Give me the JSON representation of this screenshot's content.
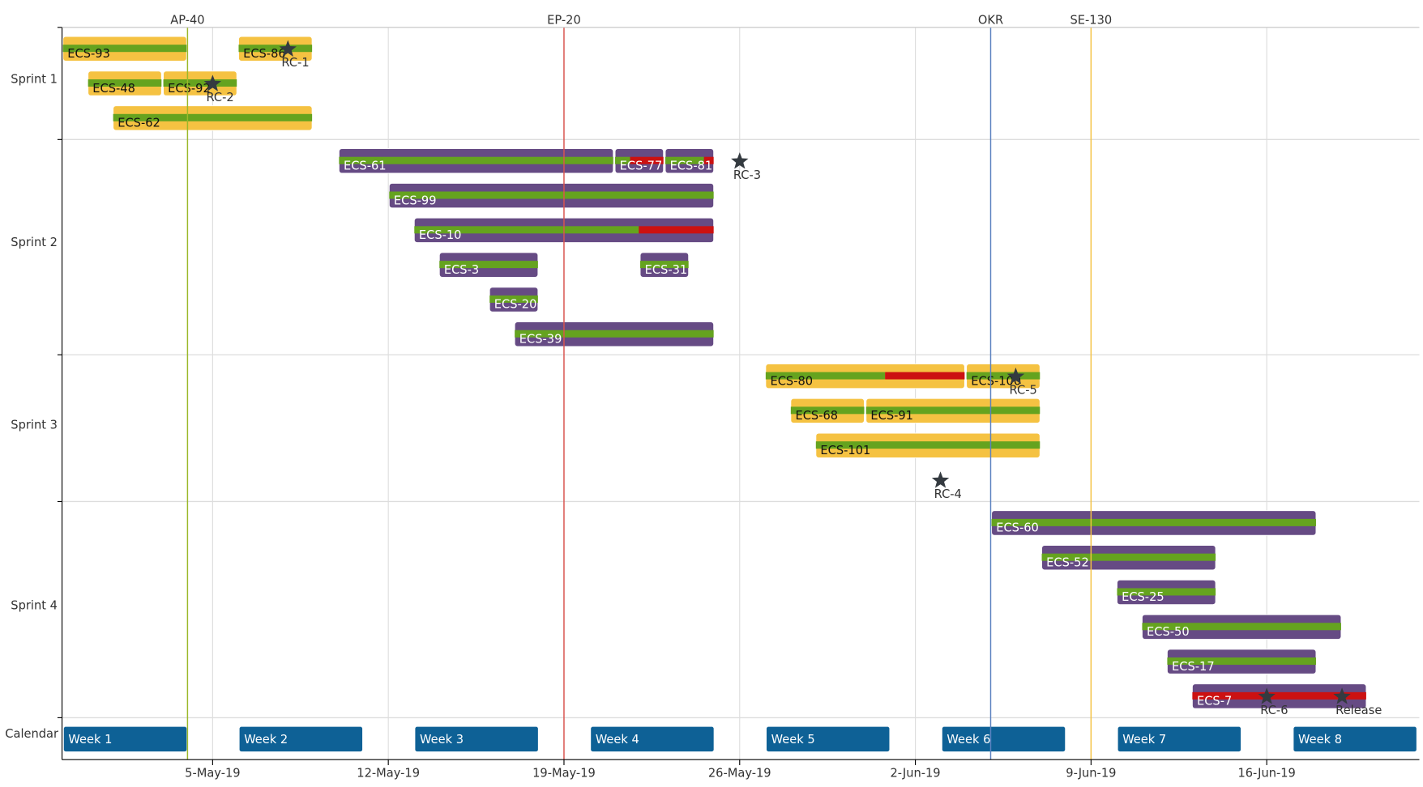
{
  "chart_data": {
    "type": "gantt",
    "x_domain": [
      "2019-04-29",
      "2019-06-22"
    ],
    "x_ticks": [
      {
        "date": "2019-05-05",
        "label": "5-May-19"
      },
      {
        "date": "2019-05-12",
        "label": "12-May-19"
      },
      {
        "date": "2019-05-19",
        "label": "19-May-19"
      },
      {
        "date": "2019-05-26",
        "label": "26-May-19"
      },
      {
        "date": "2019-06-02",
        "label": "2-Jun-19"
      },
      {
        "date": "2019-06-09",
        "label": "9-Jun-19"
      },
      {
        "date": "2019-06-16",
        "label": "16-Jun-19"
      }
    ],
    "colors": {
      "sprint_odd": "#f5c242",
      "sprint_even": "#664b84",
      "progress": "#65a31f",
      "overdue": "#cc1111",
      "calendar": "#0e6196",
      "star": "#343a40"
    },
    "lanes": [
      {
        "label": "Sprint 1",
        "rows": 3,
        "style": "yellow"
      },
      {
        "label": "Sprint 2",
        "rows": 6,
        "style": "purple"
      },
      {
        "label": "Sprint 3",
        "rows": 4,
        "style": "yellow"
      },
      {
        "label": "Sprint 4",
        "rows": 6,
        "style": "purple"
      },
      {
        "label": "Calendar",
        "rows": 1,
        "style": "calendar"
      }
    ],
    "tasks": [
      {
        "name": "ECS-93",
        "lane": 0,
        "row": 0,
        "start": "2019-04-29",
        "end": "2019-05-04",
        "progress": 1,
        "overdue": false
      },
      {
        "name": "ECS-86",
        "lane": 0,
        "row": 0,
        "start": "2019-05-06",
        "end": "2019-05-09",
        "progress": 1,
        "overdue": false
      },
      {
        "name": "ECS-48",
        "lane": 0,
        "row": 1,
        "start": "2019-04-30",
        "end": "2019-05-03",
        "progress": 1,
        "overdue": false
      },
      {
        "name": "ECS-92",
        "lane": 0,
        "row": 1,
        "start": "2019-05-03",
        "end": "2019-05-06",
        "progress": 1,
        "overdue": false
      },
      {
        "name": "ECS-62",
        "lane": 0,
        "row": 2,
        "start": "2019-05-01",
        "end": "2019-05-09",
        "progress": 1,
        "overdue": false
      },
      {
        "name": "ECS-61",
        "lane": 1,
        "row": 0,
        "start": "2019-05-10",
        "end": "2019-05-21",
        "progress": 1,
        "overdue": false
      },
      {
        "name": "ECS-77",
        "lane": 1,
        "row": 0,
        "start": "2019-05-21",
        "end": "2019-05-23",
        "progress": 0.31,
        "overdue": true
      },
      {
        "name": "ECS-81",
        "lane": 1,
        "row": 0,
        "start": "2019-05-23",
        "end": "2019-05-25",
        "progress": 0.8,
        "overdue": true
      },
      {
        "name": "ECS-99",
        "lane": 1,
        "row": 1,
        "start": "2019-05-12",
        "end": "2019-05-25",
        "progress": 1,
        "overdue": false
      },
      {
        "name": "ECS-10",
        "lane": 1,
        "row": 2,
        "start": "2019-05-13",
        "end": "2019-05-25",
        "progress": 0.75,
        "overdue": true
      },
      {
        "name": "ECS-3",
        "lane": 1,
        "row": 3,
        "start": "2019-05-14",
        "end": "2019-05-18",
        "progress": 1,
        "overdue": false
      },
      {
        "name": "ECS-31",
        "lane": 1,
        "row": 3,
        "start": "2019-05-22",
        "end": "2019-05-24",
        "progress": 1,
        "overdue": false
      },
      {
        "name": "ECS-20",
        "lane": 1,
        "row": 4,
        "start": "2019-05-16",
        "end": "2019-05-18",
        "progress": 1,
        "overdue": false
      },
      {
        "name": "ECS-39",
        "lane": 1,
        "row": 5,
        "start": "2019-05-17",
        "end": "2019-05-25",
        "progress": 1,
        "overdue": false
      },
      {
        "name": "ECS-80",
        "lane": 2,
        "row": 0,
        "start": "2019-05-27",
        "end": "2019-06-04",
        "progress": 0.6,
        "overdue": true
      },
      {
        "name": "ECS-100",
        "lane": 2,
        "row": 0,
        "start": "2019-06-04",
        "end": "2019-06-07",
        "progress": 1,
        "overdue": false
      },
      {
        "name": "ECS-68",
        "lane": 2,
        "row": 1,
        "start": "2019-05-28",
        "end": "2019-05-31",
        "progress": 1,
        "overdue": false
      },
      {
        "name": "ECS-91",
        "lane": 2,
        "row": 1,
        "start": "2019-05-31",
        "end": "2019-06-07",
        "progress": 1,
        "overdue": false
      },
      {
        "name": "ECS-101",
        "lane": 2,
        "row": 2,
        "start": "2019-05-29",
        "end": "2019-06-07",
        "progress": 1,
        "overdue": false
      },
      {
        "name": "ECS-60",
        "lane": 3,
        "row": 0,
        "start": "2019-06-05",
        "end": "2019-06-18",
        "progress": 1,
        "overdue": false
      },
      {
        "name": "ECS-52",
        "lane": 3,
        "row": 1,
        "start": "2019-06-07",
        "end": "2019-06-14",
        "progress": 1,
        "overdue": false
      },
      {
        "name": "ECS-25",
        "lane": 3,
        "row": 2,
        "start": "2019-06-10",
        "end": "2019-06-14",
        "progress": 1,
        "overdue": false
      },
      {
        "name": "ECS-50",
        "lane": 3,
        "row": 3,
        "start": "2019-06-11",
        "end": "2019-06-19",
        "progress": 1,
        "overdue": false
      },
      {
        "name": "ECS-17",
        "lane": 3,
        "row": 4,
        "start": "2019-06-12",
        "end": "2019-06-18",
        "progress": 1,
        "overdue": false
      },
      {
        "name": "ECS-7",
        "lane": 3,
        "row": 5,
        "start": "2019-06-13",
        "end": "2019-06-20",
        "progress": 0,
        "overdue": true
      }
    ],
    "calendar": [
      {
        "name": "Week 1",
        "start": "2019-04-29",
        "end": "2019-05-04"
      },
      {
        "name": "Week 2",
        "start": "2019-05-06",
        "end": "2019-05-11"
      },
      {
        "name": "Week 3",
        "start": "2019-05-13",
        "end": "2019-05-18"
      },
      {
        "name": "Week 4",
        "start": "2019-05-20",
        "end": "2019-05-25"
      },
      {
        "name": "Week 5",
        "start": "2019-05-27",
        "end": "2019-06-01"
      },
      {
        "name": "Week 6",
        "start": "2019-06-03",
        "end": "2019-06-08"
      },
      {
        "name": "Week 7",
        "start": "2019-06-10",
        "end": "2019-06-15"
      },
      {
        "name": "Week 8",
        "start": "2019-06-17",
        "end": "2019-06-22"
      }
    ],
    "milestones": [
      {
        "name": "RC-1",
        "lane": 0,
        "row": 0,
        "date": "2019-05-08"
      },
      {
        "name": "RC-2",
        "lane": 0,
        "row": 1,
        "date": "2019-05-05"
      },
      {
        "name": "RC-3",
        "lane": 1,
        "row": 0,
        "date": "2019-05-26"
      },
      {
        "name": "RC-4",
        "lane": 2,
        "row": 3,
        "date": "2019-06-03"
      },
      {
        "name": "RC-5",
        "lane": 2,
        "row": 0,
        "date": "2019-06-06"
      },
      {
        "name": "RC-6",
        "lane": 3,
        "row": 5,
        "date": "2019-06-16"
      },
      {
        "name": "Release",
        "lane": 3,
        "row": 5,
        "date": "2019-06-19"
      }
    ],
    "markers": [
      {
        "name": "AP-40",
        "date": "2019-05-04",
        "color": "#9bb82a"
      },
      {
        "name": "EP-20",
        "date": "2019-05-19",
        "color": "#d9534f"
      },
      {
        "name": "OKR",
        "date": "2019-06-05",
        "color": "#5b82c0"
      },
      {
        "name": "SE-130",
        "date": "2019-06-09",
        "color": "#f5c242"
      }
    ]
  }
}
